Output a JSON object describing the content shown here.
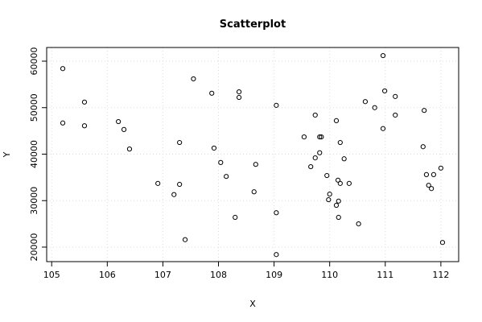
{
  "chart_data": {
    "type": "scatter",
    "title": "Scatterplot",
    "x_label": "X",
    "y_label": "Y",
    "x": [
      105.2,
      105.2,
      105.59,
      105.59,
      106.2,
      106.3,
      106.4,
      106.91,
      107.2,
      107.3,
      107.3,
      107.4,
      107.55,
      107.88,
      107.92,
      108.04,
      108.14,
      108.3,
      108.37,
      108.37,
      108.64,
      108.67,
      109.04,
      109.04,
      109.04,
      109.54,
      109.66,
      109.74,
      109.74,
      109.82,
      109.85,
      109.82,
      109.95,
      109.98,
      110.0,
      110.12,
      110.12,
      110.15,
      110.16,
      110.16,
      110.19,
      110.19,
      110.26,
      110.35,
      110.52,
      110.64,
      110.81,
      110.96,
      110.96,
      110.99,
      111.18,
      111.18,
      111.68,
      111.7,
      111.74,
      111.78,
      111.83,
      111.87,
      112.0,
      112.03
    ],
    "values": [
      58400,
      46700,
      51200,
      46100,
      47000,
      45300,
      41100,
      33700,
      31300,
      42500,
      33500,
      21600,
      56200,
      53100,
      41300,
      38200,
      35200,
      26400,
      53400,
      52200,
      31900,
      37800,
      50500,
      27400,
      18400,
      43700,
      37300,
      39200,
      48400,
      43700,
      43700,
      40300,
      35400,
      30200,
      31400,
      29000,
      47200,
      34400,
      26400,
      29900,
      33700,
      42500,
      39000,
      33700,
      25000,
      51300,
      50000,
      61200,
      45500,
      53600,
      52400,
      48400,
      41600,
      49400,
      35600,
      33300,
      32600,
      35600,
      37000,
      21000
    ],
    "color": "#000000",
    "xlim": [
      104.91,
      112.32
    ],
    "ylim": [
      16880,
      62940
    ],
    "xticks": [
      105,
      106,
      107,
      108,
      109,
      110,
      111,
      112
    ],
    "yticks": [
      20000,
      30000,
      40000,
      50000,
      60000
    ],
    "grid": true
  }
}
